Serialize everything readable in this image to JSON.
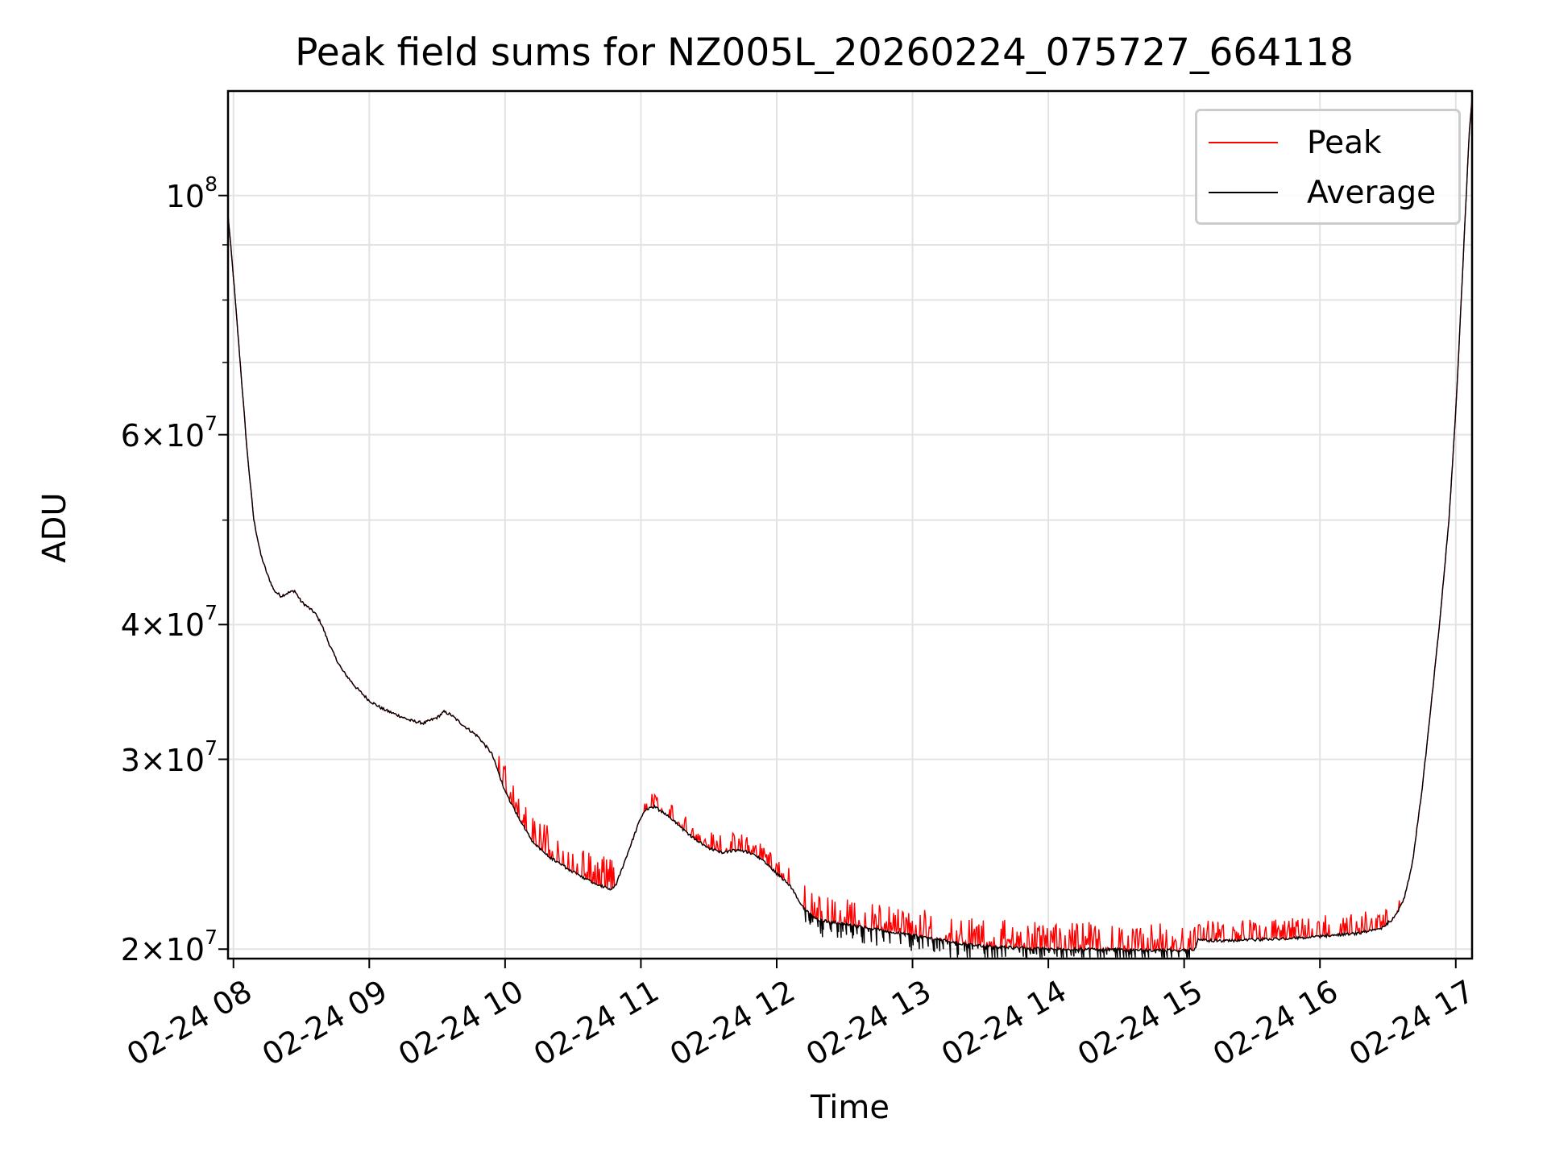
{
  "chart_data": {
    "type": "line",
    "title": "Peak field sums for NZ005L_20260224_075727_664118",
    "xlabel": "Time",
    "ylabel": "ADU",
    "yscale": "log",
    "ylim": [
      19600000,
      125000000
    ],
    "xlim": [
      7.96,
      17.12
    ],
    "x_unit": "hours on 02-24",
    "xticks": [
      {
        "value": 8,
        "label": "02-24 08"
      },
      {
        "value": 9,
        "label": "02-24 09"
      },
      {
        "value": 10,
        "label": "02-24 10"
      },
      {
        "value": 11,
        "label": "02-24 11"
      },
      {
        "value": 12,
        "label": "02-24 12"
      },
      {
        "value": 13,
        "label": "02-24 13"
      },
      {
        "value": 14,
        "label": "02-24 14"
      },
      {
        "value": 15,
        "label": "02-24 15"
      },
      {
        "value": 16,
        "label": "02-24 16"
      },
      {
        "value": 17,
        "label": "02-24 17"
      }
    ],
    "yticks": [
      {
        "value": 20000000,
        "mant": "2",
        "exp": "7"
      },
      {
        "value": 30000000,
        "mant": "3",
        "exp": "7"
      },
      {
        "value": 40000000,
        "mant": "4",
        "exp": "7"
      },
      {
        "value": 60000000,
        "mant": "6",
        "exp": "7"
      },
      {
        "value": 100000000,
        "mant": "",
        "exp": "8"
      }
    ],
    "y_minor_ticks": [
      50000000,
      70000000,
      80000000,
      90000000
    ],
    "grid": true,
    "legend": {
      "position": "top-right",
      "entries": [
        {
          "name": "Peak",
          "color": "#ff0000"
        },
        {
          "name": "Average",
          "color": "#000000"
        }
      ]
    },
    "series": [
      {
        "name": "Average",
        "color": "#000000",
        "points": [
          [
            7.96,
            96000000
          ],
          [
            8.0,
            84000000
          ],
          [
            8.05,
            70000000
          ],
          [
            8.1,
            58000000
          ],
          [
            8.15,
            50000000
          ],
          [
            8.2,
            46500000
          ],
          [
            8.25,
            44500000
          ],
          [
            8.3,
            43000000
          ],
          [
            8.35,
            42500000
          ],
          [
            8.4,
            42800000
          ],
          [
            8.45,
            43000000
          ],
          [
            8.5,
            42000000
          ],
          [
            8.55,
            41500000
          ],
          [
            8.6,
            41000000
          ],
          [
            8.65,
            40000000
          ],
          [
            8.7,
            38500000
          ],
          [
            8.75,
            37300000
          ],
          [
            8.8,
            36300000
          ],
          [
            8.9,
            35000000
          ],
          [
            9.0,
            34000000
          ],
          [
            9.1,
            33400000
          ],
          [
            9.2,
            33000000
          ],
          [
            9.3,
            32600000
          ],
          [
            9.4,
            32400000
          ],
          [
            9.5,
            32800000
          ],
          [
            9.55,
            33200000
          ],
          [
            9.6,
            33000000
          ],
          [
            9.7,
            32200000
          ],
          [
            9.8,
            31500000
          ],
          [
            9.9,
            30400000
          ],
          [
            9.95,
            29200000
          ],
          [
            10.0,
            28000000
          ],
          [
            10.1,
            26500000
          ],
          [
            10.2,
            25200000
          ],
          [
            10.3,
            24500000
          ],
          [
            10.4,
            24000000
          ],
          [
            10.5,
            23600000
          ],
          [
            10.6,
            23200000
          ],
          [
            10.7,
            22900000
          ],
          [
            10.78,
            22700000
          ],
          [
            10.82,
            23000000
          ],
          [
            10.9,
            24500000
          ],
          [
            11.0,
            26500000
          ],
          [
            11.05,
            27000000
          ],
          [
            11.1,
            27100000
          ],
          [
            11.2,
            26600000
          ],
          [
            11.3,
            25900000
          ],
          [
            11.4,
            25300000
          ],
          [
            11.5,
            24800000
          ],
          [
            11.6,
            24600000
          ],
          [
            11.7,
            24700000
          ],
          [
            11.8,
            24600000
          ],
          [
            11.9,
            24200000
          ],
          [
            12.0,
            23500000
          ],
          [
            12.1,
            22900000
          ],
          [
            12.2,
            21800000
          ],
          [
            12.3,
            21300000
          ],
          [
            12.4,
            21200000
          ],
          [
            12.5,
            21100000
          ],
          [
            12.6,
            21000000
          ],
          [
            12.7,
            20900000
          ],
          [
            12.8,
            20800000
          ],
          [
            12.9,
            20700000
          ],
          [
            13.0,
            20600000
          ],
          [
            13.1,
            20500000
          ],
          [
            13.2,
            20400000
          ],
          [
            13.3,
            20300000
          ],
          [
            13.4,
            20200000
          ],
          [
            13.5,
            20150000
          ],
          [
            13.6,
            20100000
          ],
          [
            13.8,
            20050000
          ],
          [
            14.0,
            20000000
          ],
          [
            14.2,
            20000000
          ],
          [
            14.4,
            20000000
          ],
          [
            14.6,
            19950000
          ],
          [
            14.8,
            19950000
          ],
          [
            15.0,
            19950000
          ],
          [
            15.08,
            20000000
          ],
          [
            15.1,
            20400000
          ],
          [
            15.3,
            20350000
          ],
          [
            15.5,
            20400000
          ],
          [
            15.7,
            20450000
          ],
          [
            15.9,
            20500000
          ],
          [
            16.1,
            20600000
          ],
          [
            16.3,
            20700000
          ],
          [
            16.45,
            20900000
          ],
          [
            16.55,
            21400000
          ],
          [
            16.62,
            22300000
          ],
          [
            16.68,
            24000000
          ],
          [
            16.75,
            28000000
          ],
          [
            16.8,
            32000000
          ],
          [
            16.88,
            40000000
          ],
          [
            16.95,
            50000000
          ],
          [
            17.0,
            63000000
          ],
          [
            17.05,
            85000000
          ],
          [
            17.1,
            115000000
          ],
          [
            17.12,
            123000000
          ]
        ]
      },
      {
        "name": "Peak",
        "color": "#ff0000",
        "note": "follows Average; spikes above it in mid-day segments",
        "spike_segments": [
          {
            "from": 9.95,
            "to": 10.8,
            "max_offset": 1600000
          },
          {
            "from": 11.0,
            "to": 11.2,
            "max_offset": 800000
          },
          {
            "from": 11.2,
            "to": 12.1,
            "max_offset": 900000
          },
          {
            "from": 12.2,
            "to": 15.08,
            "max_offset": 1200000
          },
          {
            "from": 15.1,
            "to": 16.6,
            "max_offset": 900000
          }
        ]
      }
    ]
  }
}
